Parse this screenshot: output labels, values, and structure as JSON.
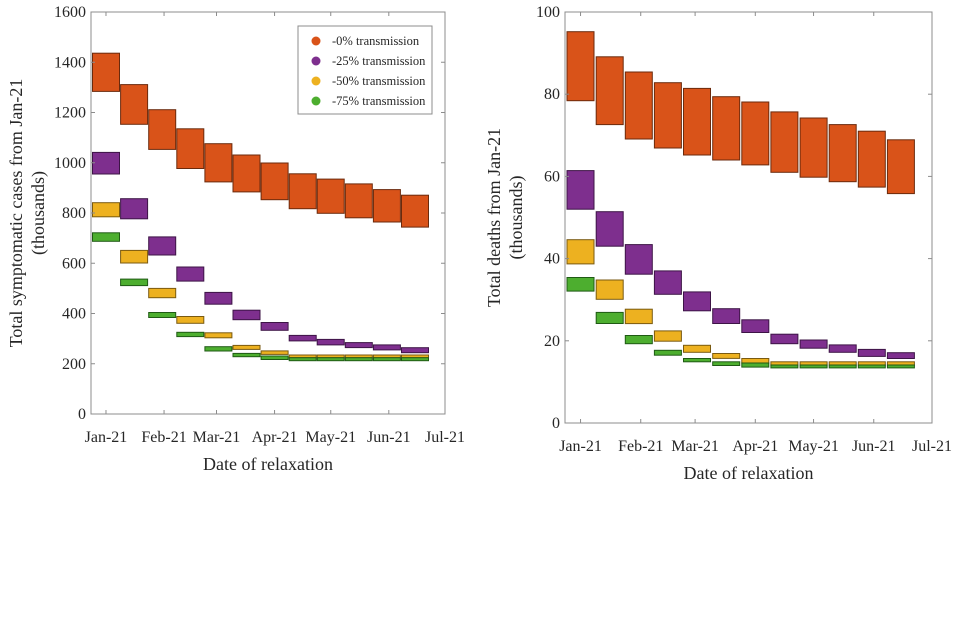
{
  "colors": {
    "orange": "#d95319",
    "purple": "#7e2f8e",
    "yellow": "#edb120",
    "green": "#4dae2f"
  },
  "chart_data": [
    {
      "type": "floating-bar",
      "title": "",
      "xlabel": "Date of relaxation",
      "ylabel_line1": "Total symptomatic cases from Jan-21",
      "ylabel_line2": "(thousands)",
      "ylim": [
        0,
        1600
      ],
      "yticks": [
        0,
        200,
        400,
        600,
        800,
        1000,
        1200,
        1400,
        1600
      ],
      "x_unit": "days since Jan-21 start",
      "xlim": [
        -8,
        181
      ],
      "xticks": [
        {
          "label": "Jan-21",
          "day": 0
        },
        {
          "label": "Feb-21",
          "day": 31
        },
        {
          "label": "Mar-21",
          "day": 59
        },
        {
          "label": "Apr-21",
          "day": 90
        },
        {
          "label": "May-21",
          "day": 120
        },
        {
          "label": "Jun-21",
          "day": 151
        },
        {
          "label": "Jul-21",
          "day": 181
        }
      ],
      "grid": false,
      "legend": {
        "position": "top-right",
        "entries": [
          "-0% transmission",
          "-25% transmission",
          "-50% transmission",
          "-75% transmission"
        ]
      },
      "x": [
        0,
        15,
        30,
        45,
        60,
        75,
        90,
        105,
        120,
        135,
        150,
        165
      ],
      "series": [
        {
          "name": "-0% transmission",
          "color_key": "orange",
          "low": [
            1284,
            1153,
            1053,
            977,
            924,
            884,
            853,
            817,
            799,
            781,
            764,
            744
          ],
          "high": [
            1436,
            1311,
            1211,
            1135,
            1076,
            1031,
            999,
            956,
            935,
            916,
            893,
            871
          ]
        },
        {
          "name": "-25% transmission",
          "color_key": "purple",
          "low": [
            955,
            777,
            633,
            529,
            437,
            375,
            333,
            291,
            275,
            264,
            255,
            244
          ],
          "high": [
            1041,
            857,
            705,
            585,
            484,
            413,
            364,
            313,
            297,
            284,
            275,
            264
          ]
        },
        {
          "name": "-50% transmission",
          "color_key": "yellow",
          "low": [
            785,
            601,
            463,
            361,
            303,
            257,
            237,
            224,
            224,
            224,
            224,
            224
          ],
          "high": [
            841,
            651,
            500,
            388,
            323,
            273,
            251,
            235,
            235,
            235,
            235,
            235
          ]
        },
        {
          "name": "-75% transmission",
          "color_key": "green",
          "low": [
            687,
            511,
            384,
            308,
            251,
            228,
            217,
            212,
            212,
            212,
            212,
            212
          ],
          "high": [
            721,
            537,
            404,
            325,
            268,
            241,
            231,
            224,
            224,
            224,
            224,
            224
          ]
        }
      ]
    },
    {
      "type": "floating-bar",
      "title": "",
      "xlabel": "Date of relaxation",
      "ylabel_line1": "Total deaths from Jan-21",
      "ylabel_line2": "(thousands)",
      "ylim": [
        0,
        100
      ],
      "yticks": [
        0,
        20,
        40,
        60,
        80,
        100
      ],
      "x_unit": "days since Jan-21 start",
      "xlim": [
        -8,
        181
      ],
      "xticks": [
        {
          "label": "Jan-21",
          "day": 0
        },
        {
          "label": "Feb-21",
          "day": 31
        },
        {
          "label": "Mar-21",
          "day": 59
        },
        {
          "label": "Apr-21",
          "day": 90
        },
        {
          "label": "May-21",
          "day": 120
        },
        {
          "label": "Jun-21",
          "day": 151
        },
        {
          "label": "Jul-21",
          "day": 181
        }
      ],
      "grid": false,
      "legend": null,
      "x": [
        0,
        15,
        30,
        45,
        60,
        75,
        90,
        105,
        120,
        135,
        150,
        165
      ],
      "series": [
        {
          "name": "-0% transmission",
          "color_key": "orange",
          "low": [
            78.4,
            72.6,
            69.1,
            66.9,
            65.2,
            64.0,
            62.8,
            61.0,
            59.8,
            58.7,
            57.4,
            55.8
          ],
          "high": [
            95.2,
            89.1,
            85.4,
            82.8,
            81.4,
            79.4,
            78.1,
            75.7,
            74.2,
            72.6,
            71.0,
            68.9
          ]
        },
        {
          "name": "-25% transmission",
          "color_key": "purple",
          "low": [
            52.0,
            43.0,
            36.2,
            31.3,
            27.3,
            24.2,
            22.0,
            19.3,
            18.2,
            17.2,
            16.2,
            15.7
          ],
          "high": [
            61.4,
            51.4,
            43.4,
            37.0,
            31.9,
            27.8,
            25.1,
            21.6,
            20.2,
            19.0,
            17.9,
            17.1
          ]
        },
        {
          "name": "-50% transmission",
          "color_key": "yellow",
          "low": [
            38.7,
            30.1,
            24.2,
            19.9,
            17.2,
            15.7,
            14.6,
            14.1,
            14.1,
            14.1,
            14.1,
            14.1
          ],
          "high": [
            44.6,
            34.8,
            27.7,
            22.4,
            18.9,
            16.9,
            15.7,
            14.9,
            14.9,
            14.9,
            14.9,
            14.9
          ]
        },
        {
          "name": "-75% transmission",
          "color_key": "green",
          "low": [
            32.1,
            24.2,
            19.3,
            16.5,
            14.9,
            14.0,
            13.6,
            13.4,
            13.4,
            13.4,
            13.4,
            13.4
          ],
          "high": [
            35.4,
            26.9,
            21.3,
            17.7,
            15.7,
            14.9,
            14.6,
            14.1,
            14.1,
            14.1,
            14.1,
            14.1
          ]
        }
      ]
    }
  ]
}
